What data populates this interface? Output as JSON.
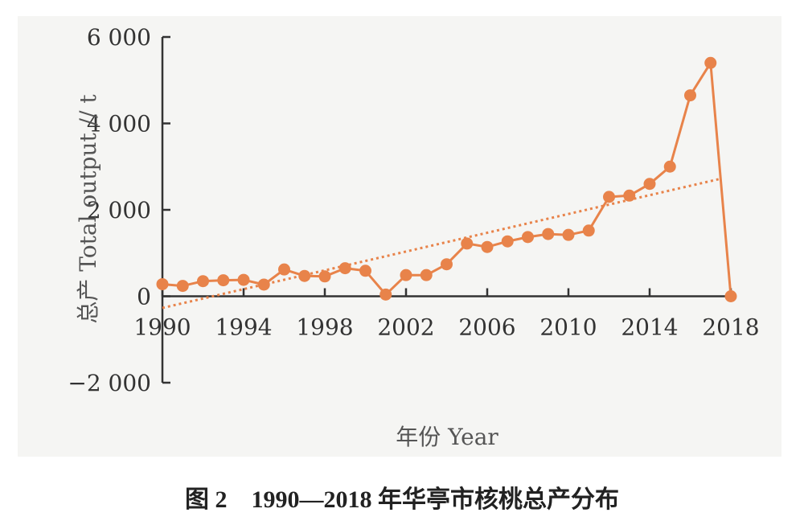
{
  "caption": "图 2　1990—2018 年华亭市核桃总产分布",
  "chart_data": {
    "type": "line",
    "xlabel": "年份 Year",
    "ylabel": "总产 Total output // t",
    "xlim": [
      1990,
      2018
    ],
    "ylim": [
      -2000,
      6000
    ],
    "xticks": [
      {
        "value": 1990,
        "label": "1990"
      },
      {
        "value": 1994,
        "label": "1994"
      },
      {
        "value": 1998,
        "label": "1998"
      },
      {
        "value": 2002,
        "label": "2002"
      },
      {
        "value": 2006,
        "label": "2006"
      },
      {
        "value": 2010,
        "label": "2010"
      },
      {
        "value": 2014,
        "label": "2014"
      },
      {
        "value": 2018,
        "label": "2018"
      }
    ],
    "yticks": [
      {
        "value": -2000,
        "label": "−2 000"
      },
      {
        "value": 0,
        "label": "0"
      },
      {
        "value": 2000,
        "label": "2 000"
      },
      {
        "value": 4000,
        "label": "4 000"
      },
      {
        "value": 6000,
        "label": "6 000"
      }
    ],
    "series": [
      {
        "style": "line-markers",
        "color": "#e8834a",
        "points": [
          [
            1990,
            280
          ],
          [
            1991,
            240
          ],
          [
            1992,
            350
          ],
          [
            1993,
            370
          ],
          [
            1994,
            380
          ],
          [
            1995,
            270
          ],
          [
            1996,
            620
          ],
          [
            1997,
            470
          ],
          [
            1998,
            460
          ],
          [
            1999,
            650
          ],
          [
            2000,
            590
          ],
          [
            2001,
            40
          ],
          [
            2002,
            490
          ],
          [
            2003,
            490
          ],
          [
            2004,
            740
          ],
          [
            2005,
            1220
          ],
          [
            2006,
            1140
          ],
          [
            2007,
            1270
          ],
          [
            2008,
            1370
          ],
          [
            2009,
            1440
          ],
          [
            2010,
            1420
          ],
          [
            2011,
            1520
          ],
          [
            2012,
            2300
          ],
          [
            2013,
            2330
          ],
          [
            2014,
            2600
          ],
          [
            2015,
            3000
          ],
          [
            2016,
            4650
          ],
          [
            2017,
            5400
          ],
          [
            2018,
            0
          ]
        ]
      },
      {
        "style": "dotted-trend",
        "color": "#e8834a",
        "points": [
          [
            1990,
            -270
          ],
          [
            2017.5,
            2720
          ]
        ]
      }
    ]
  }
}
